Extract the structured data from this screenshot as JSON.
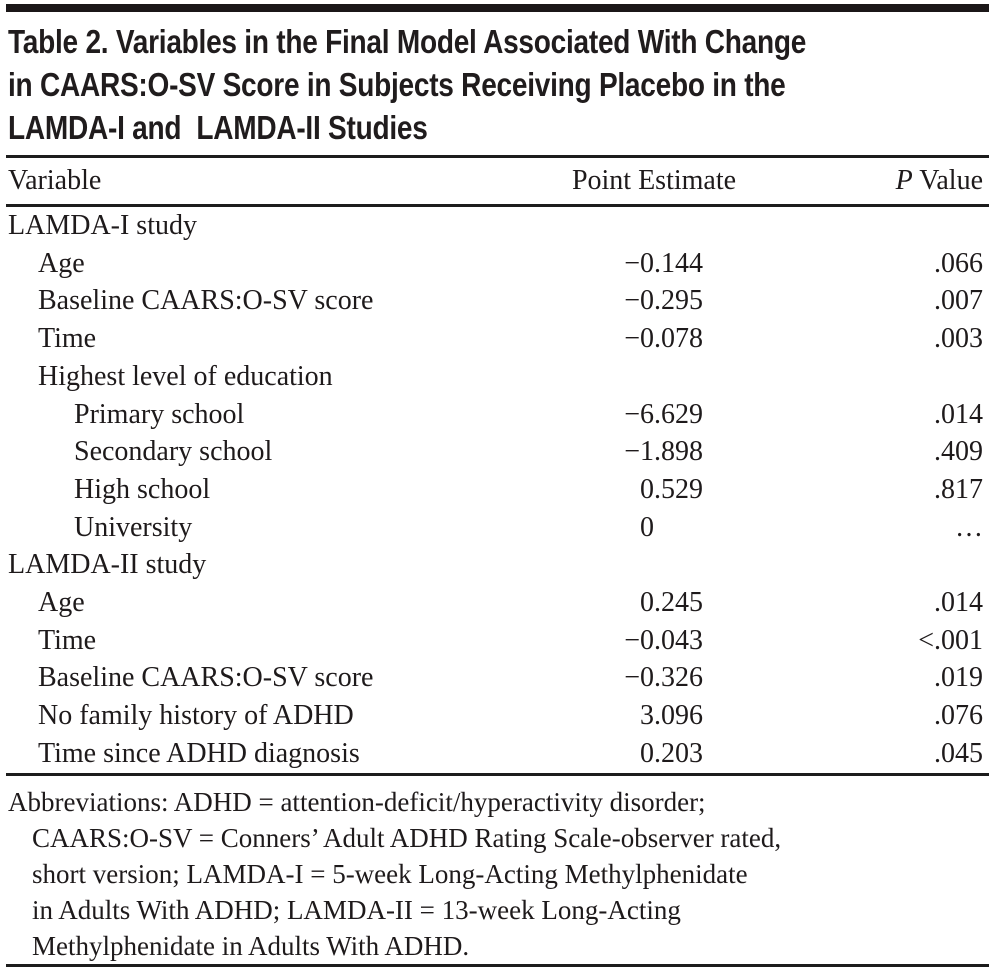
{
  "title": "Table 2. Variables in the Final Model Associated With Change\nin CAARS:O-SV Score in Subjects Receiving Placebo in the\nLAMDA-I and  LAMDA-II Studies",
  "table": {
    "columns": {
      "variable": "Variable",
      "point_estimate": "Point Estimate",
      "p_value_italic": "P",
      "p_value_rest": " Value"
    },
    "rows": [
      {
        "label": "LAMDA-I study",
        "indent": 0,
        "point_estimate": "",
        "p_value": ""
      },
      {
        "label": "Age",
        "indent": 1,
        "point_estimate": "−0.144",
        "p_value": ".066"
      },
      {
        "label": "Baseline CAARS:O-SV score",
        "indent": 1,
        "point_estimate": "−0.295",
        "p_value": ".007"
      },
      {
        "label": "Time",
        "indent": 1,
        "point_estimate": "−0.078",
        "p_value": ".003"
      },
      {
        "label": "Highest level of education",
        "indent": 1,
        "point_estimate": "",
        "p_value": ""
      },
      {
        "label": "Primary school",
        "indent": 2,
        "point_estimate": "−6.629",
        "p_value": ".014"
      },
      {
        "label": "Secondary school",
        "indent": 2,
        "point_estimate": "−1.898",
        "p_value": ".409"
      },
      {
        "label": "High school",
        "indent": 2,
        "point_estimate": "0.529",
        "p_value": ".817"
      },
      {
        "label": "University",
        "indent": 2,
        "point_estimate": "0",
        "p_value": "…"
      },
      {
        "label": "LAMDA-II study",
        "indent": 0,
        "point_estimate": "",
        "p_value": ""
      },
      {
        "label": "Age",
        "indent": 1,
        "point_estimate": "0.245",
        "p_value": ".014"
      },
      {
        "label": "Time",
        "indent": 1,
        "point_estimate": "−0.043",
        "p_value": "<.001"
      },
      {
        "label": "Baseline CAARS:O-SV score",
        "indent": 1,
        "point_estimate": "−0.326",
        "p_value": ".019"
      },
      {
        "label": "No family history of ADHD",
        "indent": 1,
        "point_estimate": "3.096",
        "p_value": ".076"
      },
      {
        "label": "Time since ADHD diagnosis",
        "indent": 1,
        "point_estimate": "0.203",
        "p_value": ".045"
      }
    ]
  },
  "footnote": {
    "lines": [
      "Abbreviations: ADHD = attention-deficit/hyperactivity disorder;",
      "CAARS:O-SV = Conners’ Adult ADHD Rating Scale-observer rated,",
      "short version; LAMDA-I = 5-week Long-Acting Methylphenidate",
      "in Adults With ADHD; LAMDA-II = 13-week Long-Acting",
      "Methylphenidate in Adults With ADHD."
    ]
  },
  "colors": {
    "text": "#1e1a1b",
    "rule": "#1c1c1c",
    "background": "#ffffff"
  }
}
